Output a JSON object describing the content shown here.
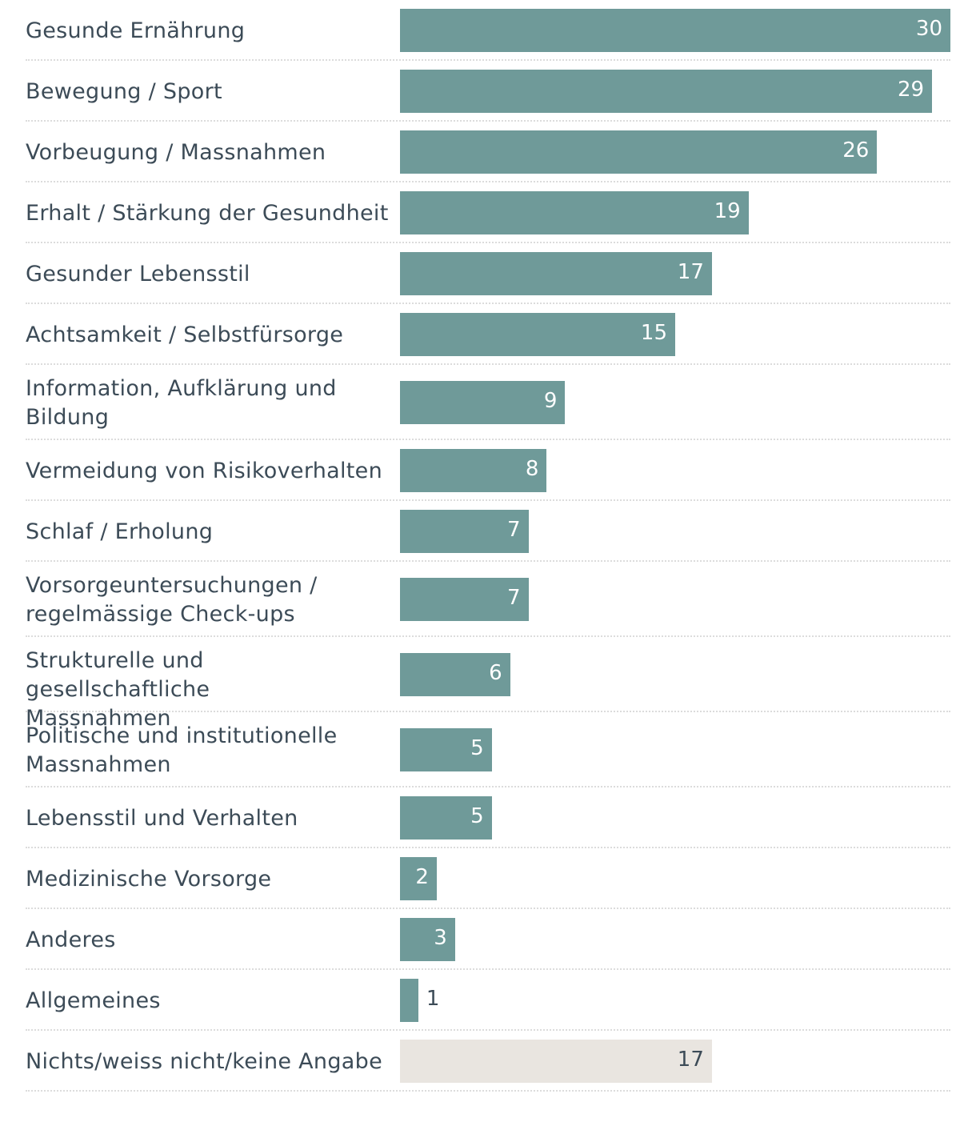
{
  "chart_data": {
    "type": "bar",
    "orientation": "horizontal",
    "xlim": [
      0,
      30
    ],
    "colors": {
      "bar": "#6f9a99",
      "highlight_bar": "#e9e5e0",
      "label_text": "#3c4b57",
      "value_inside": "#ffffff",
      "value_outside": "#3c4b57"
    },
    "categories": [
      "Gesunde Ernährung",
      "Bewegung / Sport",
      "Vorbeugung / Massnahmen",
      "Erhalt / Stärkung der Gesundheit",
      "Gesunder Lebensstil",
      "Achtsamkeit / Selbstfürsorge",
      "Information, Aufklärung und Bildung",
      "Vermeidung von Risikoverhalten",
      "Schlaf / Erholung",
      "Vorsorgeuntersuchungen / regelmässige Check-ups",
      "Strukturelle und gesellschaftliche Massnahmen",
      "Politische und institutionelle Massnahmen",
      "Lebensstil und Verhalten",
      "Medizinische Vorsorge",
      "Anderes",
      "Allgemeines",
      "Nichts/weiss nicht/keine Angabe"
    ],
    "label_lines": [
      [
        "Gesunde Ernährung"
      ],
      [
        "Bewegung / Sport"
      ],
      [
        "Vorbeugung / Massnahmen"
      ],
      [
        "Erhalt / Stärkung der Gesundheit"
      ],
      [
        "Gesunder Lebensstil"
      ],
      [
        "Achtsamkeit / Selbstfürsorge"
      ],
      [
        "Information, Aufklärung und",
        "Bildung"
      ],
      [
        "Vermeidung von Risikoverhalten"
      ],
      [
        "Schlaf / Erholung"
      ],
      [
        "Vorsorgeuntersuchungen /",
        "regelmässige Check-ups"
      ],
      [
        "Strukturelle und gesellschaftliche",
        "Massnahmen"
      ],
      [
        "Politische und institutionelle",
        "Massnahmen"
      ],
      [
        "Lebensstil und Verhalten"
      ],
      [
        "Medizinische Vorsorge"
      ],
      [
        "Anderes"
      ],
      [
        "Allgemeines"
      ],
      [
        "Nichts/weiss nicht/keine Angabe"
      ]
    ],
    "values": [
      30,
      29,
      26,
      19,
      17,
      15,
      9,
      8,
      7,
      7,
      6,
      5,
      5,
      2,
      3,
      1,
      17
    ],
    "highlighted": [
      false,
      false,
      false,
      false,
      false,
      false,
      false,
      false,
      false,
      false,
      false,
      false,
      false,
      false,
      false,
      false,
      true
    ],
    "title": "",
    "xlabel": "",
    "ylabel": ""
  }
}
